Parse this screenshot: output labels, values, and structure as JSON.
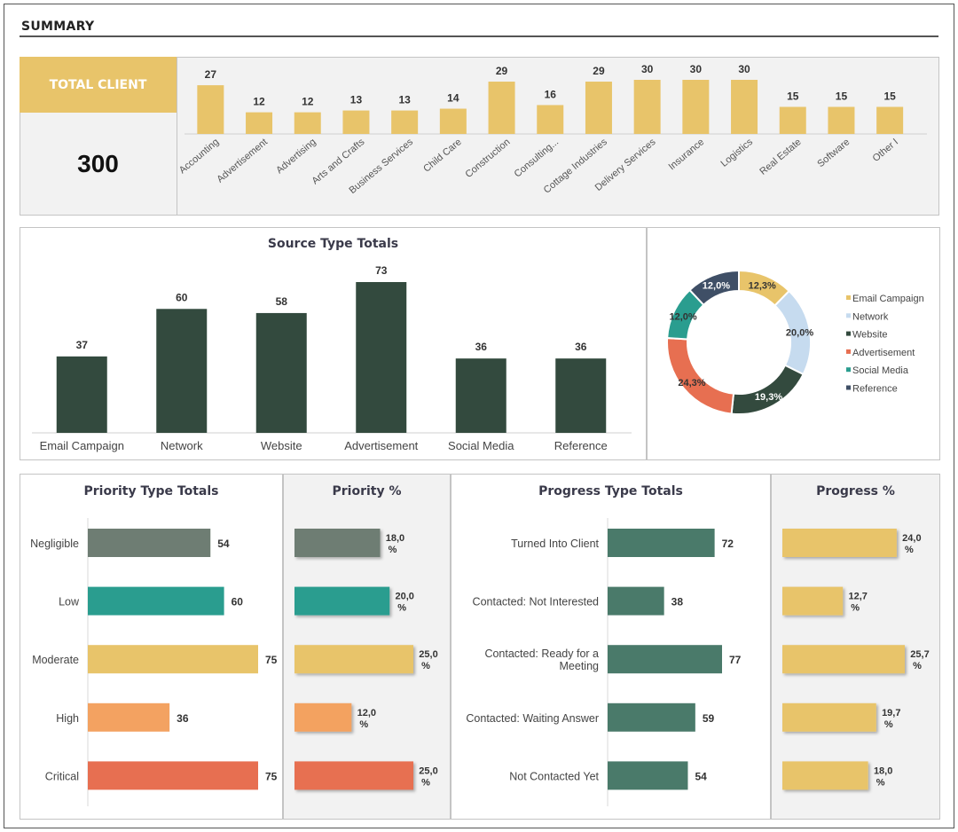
{
  "header": {
    "title": "SUMMARY"
  },
  "total_client": {
    "label": "TOTAL CLIENT",
    "value": "300"
  },
  "panel_titles": {
    "source": "Source Type Totals",
    "priority": "Priority Type Totals",
    "priority_pct": "Priority %",
    "progress": "Progress Type Totals",
    "progress_pct": "Progress %"
  },
  "colors": {
    "gold": "#e8c46a",
    "dark_green": "#334a3e",
    "teal_green": "#4a7a6a",
    "gray_green": "#6e7d73",
    "teal": "#2a9d8f",
    "orange": "#f3a261",
    "red": "#e76f51",
    "light_blue": "#c6dbef",
    "slate": "#3f4f66",
    "emerald": "#2a9d8f"
  },
  "chart_data": [
    {
      "id": "industry",
      "type": "bar",
      "categories": [
        "Accounting",
        "Advertisement",
        "Advertising",
        "Arts and Crafts",
        "Business Services",
        "Child Care",
        "Construction",
        "Consulting...",
        "Cottage Industries",
        "Delivery Services",
        "Insurance",
        "Logistics",
        "Real Estate",
        "Software",
        "Other I"
      ],
      "values": [
        27,
        12,
        12,
        13,
        13,
        14,
        29,
        16,
        29,
        30,
        30,
        30,
        15,
        15,
        15
      ],
      "ylim": [
        0,
        32
      ]
    },
    {
      "id": "source",
      "type": "bar",
      "title": "Source Type Totals",
      "categories": [
        "Email Campaign",
        "Network",
        "Website",
        "Advertisement",
        "Social Media",
        "Reference"
      ],
      "values": [
        37,
        60,
        58,
        73,
        36,
        36
      ],
      "ylim": [
        0,
        78
      ]
    },
    {
      "id": "source_pct",
      "type": "pie",
      "labels": [
        "Email Campaign",
        "Network",
        "Website",
        "Advertisement",
        "Social Media",
        "Reference"
      ],
      "values": [
        12.3,
        20.0,
        19.3,
        24.3,
        12.0,
        12.0
      ],
      "value_labels": [
        "12,3%",
        "20,0%",
        "19,3%",
        "24,3%",
        "12,0%",
        "12,0%"
      ],
      "colors": [
        "#e8c46a",
        "#c6dbef",
        "#334a3e",
        "#e76f51",
        "#2a9d8f",
        "#3f4f66"
      ],
      "legend": "right"
    },
    {
      "id": "priority",
      "type": "bar",
      "orientation": "horizontal",
      "title": "Priority Type Totals",
      "categories": [
        "Negligible",
        "Low",
        "Moderate",
        "High",
        "Critical"
      ],
      "values": [
        54,
        60,
        75,
        36,
        75
      ],
      "colors": [
        "#6e7d73",
        "#2a9d8f",
        "#e8c46a",
        "#f3a261",
        "#e76f51"
      ],
      "xlim": [
        0,
        80
      ]
    },
    {
      "id": "priority_pct",
      "type": "bar",
      "orientation": "horizontal",
      "title": "Priority %",
      "categories": [
        "Negligible",
        "Low",
        "Moderate",
        "High",
        "Critical"
      ],
      "values": [
        18.0,
        20.0,
        25.0,
        12.0,
        25.0
      ],
      "value_labels": [
        "18,0\n%",
        "20,0\n%",
        "25,0\n%",
        "12,0\n%",
        "25,0\n%"
      ],
      "colors": [
        "#6e7d73",
        "#2a9d8f",
        "#e8c46a",
        "#f3a261",
        "#e76f51"
      ],
      "xlim": [
        0,
        27
      ]
    },
    {
      "id": "progress",
      "type": "bar",
      "orientation": "horizontal",
      "title": "Progress Type Totals",
      "categories": [
        "Turned Into Client",
        "Contacted: Not Interested",
        "Contacted: Ready for a Meeting",
        "Contacted: Waiting Answer",
        "Not Contacted Yet"
      ],
      "category_lines": [
        [
          "Turned Into Client"
        ],
        [
          "Contacted: Not Interested"
        ],
        [
          "Contacted: Ready for a",
          "Meeting"
        ],
        [
          "Contacted: Waiting Answer"
        ],
        [
          "Not Contacted Yet"
        ]
      ],
      "values": [
        72,
        38,
        77,
        59,
        54
      ],
      "xlim": [
        0,
        80
      ]
    },
    {
      "id": "progress_pct",
      "type": "bar",
      "orientation": "horizontal",
      "title": "Progress %",
      "categories": [
        "Turned Into Client",
        "Contacted: Not Interested",
        "Contacted: Ready for a Meeting",
        "Contacted: Waiting Answer",
        "Not Contacted Yet"
      ],
      "values": [
        24.0,
        12.7,
        25.7,
        19.7,
        18.0
      ],
      "value_labels": [
        "24,0\n%",
        "12,7\n%",
        "25,7\n%",
        "19,7\n%",
        "18,0\n%"
      ],
      "xlim": [
        0,
        27
      ]
    }
  ]
}
